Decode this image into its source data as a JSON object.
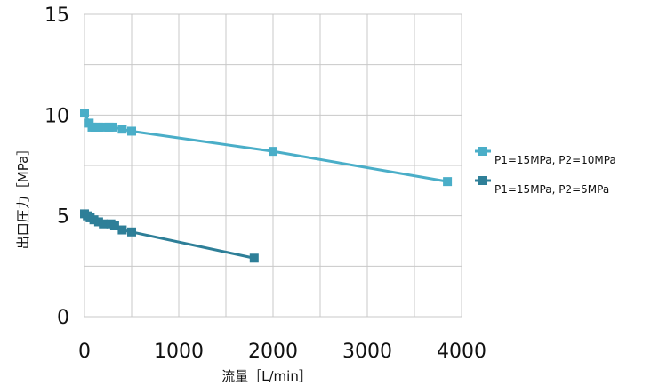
{
  "chart_data": {
    "type": "line",
    "xlabel": "流量［L/min］",
    "ylabel": "出口圧力［MPa］",
    "xlim": [
      0,
      4000
    ],
    "ylim": [
      0,
      15
    ],
    "x_ticks": [
      0,
      1000,
      2000,
      3000,
      4000
    ],
    "y_ticks": [
      0,
      5,
      10,
      15
    ],
    "grid": true,
    "grid_x_step": 500,
    "grid_y_step": 2.5,
    "legend_position": "right",
    "series": [
      {
        "name": "P1=15MPa, P2=10MPa",
        "color": "#4aaec8",
        "x": [
          0,
          50,
          80,
          110,
          150,
          200,
          260,
          300,
          400,
          500,
          2000,
          3850
        ],
        "y": [
          10.1,
          9.6,
          9.4,
          9.4,
          9.4,
          9.4,
          9.4,
          9.4,
          9.3,
          9.2,
          8.2,
          6.7
        ]
      },
      {
        "name": "P1=15MPa, P2=5MPa",
        "color": "#2e7f98",
        "x": [
          0,
          30,
          60,
          100,
          150,
          200,
          280,
          320,
          400,
          500,
          1800
        ],
        "y": [
          5.1,
          5.0,
          4.9,
          4.8,
          4.7,
          4.6,
          4.6,
          4.5,
          4.3,
          4.2,
          2.9
        ]
      }
    ]
  }
}
